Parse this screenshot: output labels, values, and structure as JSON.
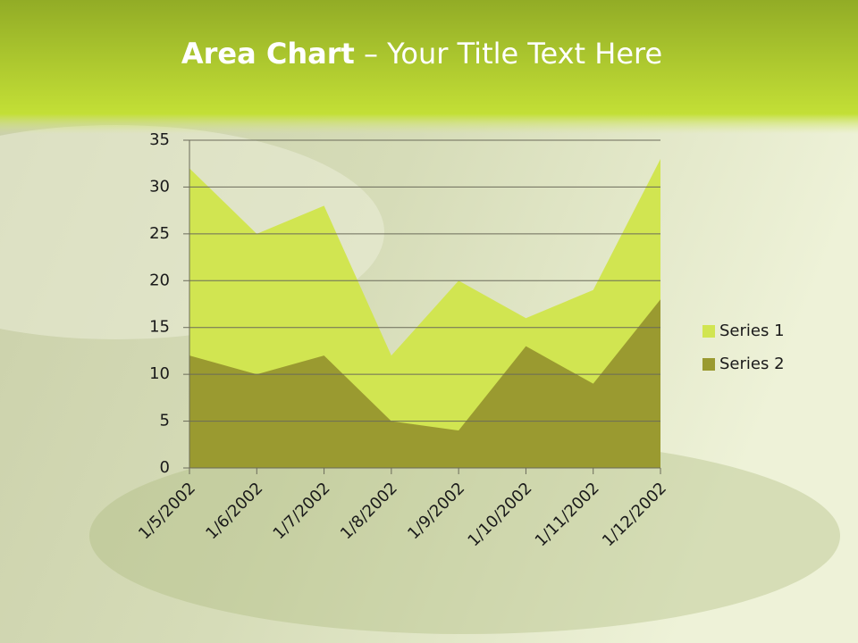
{
  "chart_data": {
    "type": "area",
    "title": [
      "Area Chart",
      "– Your Title Text Here"
    ],
    "categories": [
      "1/5/2002",
      "1/6/2002",
      "1/7/2002",
      "1/8/2002",
      "1/9/2002",
      "1/10/2002",
      "1/11/2002",
      "1/12/2002"
    ],
    "series": [
      {
        "name": "Series 1",
        "color": "#d1e551",
        "values": [
          32,
          25,
          28,
          12,
          20,
          16,
          19,
          33
        ]
      },
      {
        "name": "Series 2",
        "color": "#9a9a30",
        "values": [
          12,
          10,
          12,
          5,
          4,
          13,
          9,
          18
        ]
      }
    ],
    "ylim": [
      0,
      35
    ],
    "yticks": [
      0,
      5,
      10,
      15,
      20,
      25,
      30,
      35
    ],
    "grid": true,
    "legend": "right"
  }
}
